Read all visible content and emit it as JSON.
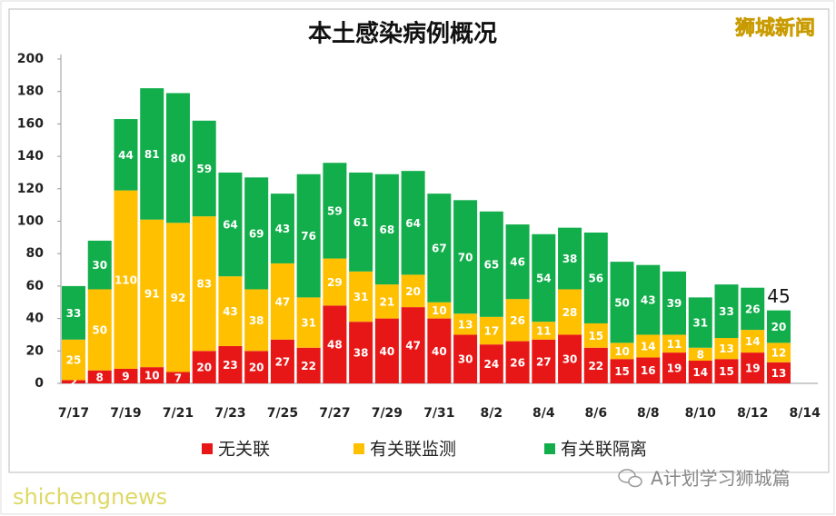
{
  "chart_data": {
    "type": "bar",
    "stacked": true,
    "title": "本土感染病例概况",
    "watermark": "狮城新闻",
    "footer": {
      "account": "A计划学习狮城篇",
      "site": "shichengnews"
    },
    "categories": [
      "7/17",
      null,
      "7/19",
      null,
      "7/21",
      null,
      "7/23",
      null,
      "7/25",
      null,
      "7/27",
      null,
      "7/29",
      null,
      "7/31",
      null,
      "8/2",
      null,
      "8/4",
      null,
      "8/6",
      null,
      "8/8",
      null,
      "8/10",
      null,
      "8/12",
      null,
      "8/14"
    ],
    "series": [
      {
        "name": "无关联",
        "color": "#e81717",
        "values": [
          2,
          8,
          9,
          10,
          7,
          20,
          23,
          20,
          27,
          22,
          48,
          38,
          40,
          47,
          40,
          30,
          24,
          26,
          27,
          30,
          22,
          15,
          16,
          19,
          14,
          15,
          19,
          13,
          null
        ]
      },
      {
        "name": "有关联监测",
        "color": "#ffc000",
        "values": [
          25,
          50,
          110,
          91,
          92,
          83,
          43,
          38,
          47,
          31,
          29,
          31,
          21,
          20,
          10,
          13,
          17,
          26,
          11,
          28,
          15,
          10,
          14,
          11,
          8,
          13,
          14,
          12,
          null
        ]
      },
      {
        "name": "有关联隔离",
        "color": "#12ae4b",
        "values": [
          33,
          30,
          44,
          81,
          80,
          59,
          64,
          69,
          43,
          76,
          59,
          61,
          68,
          64,
          67,
          70,
          65,
          46,
          54,
          38,
          56,
          50,
          43,
          39,
          31,
          33,
          26,
          20,
          null
        ]
      }
    ],
    "annotations": [
      "45"
    ],
    "ylim": [
      0,
      200
    ],
    "yticks": [
      0,
      20,
      40,
      60,
      80,
      100,
      120,
      140,
      160,
      180,
      200
    ],
    "grid": false
  }
}
